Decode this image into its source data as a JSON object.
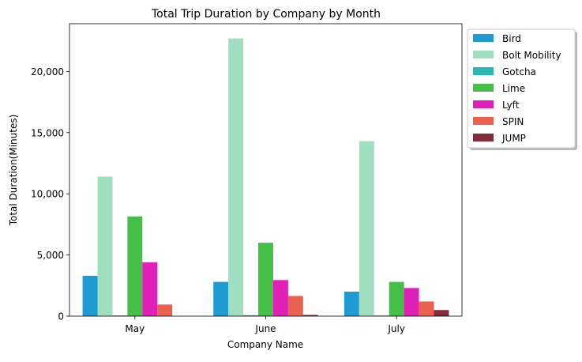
{
  "chart_data": {
    "type": "bar",
    "title": "Total Trip Duration by Company by Month",
    "xlabel": "Company Name",
    "ylabel": "Total Duration(Minutes)",
    "categories": [
      "May",
      "June",
      "July"
    ],
    "ylim": [
      0,
      23900
    ],
    "yticks": [
      0,
      5000,
      10000,
      15000,
      20000
    ],
    "ytick_labels": [
      "0",
      "5,000",
      "10,000",
      "15,000",
      "20,000"
    ],
    "grid": false,
    "legend_position": "outside-top-right",
    "series": [
      {
        "name": "Bird",
        "color": "#1e9bd2",
        "values": [
          3300,
          2800,
          2000
        ]
      },
      {
        "name": "Bolt Mobility",
        "color": "#9fdfbf",
        "values": [
          11400,
          22700,
          14300
        ]
      },
      {
        "name": "Gotcha",
        "color": "#2bb6b6",
        "values": [
          60,
          80,
          50
        ]
      },
      {
        "name": "Lime",
        "color": "#45bf47",
        "values": [
          8150,
          6000,
          2800
        ]
      },
      {
        "name": "Lyft",
        "color": "#e020b6",
        "values": [
          4400,
          2950,
          2300
        ]
      },
      {
        "name": "SPIN",
        "color": "#ec6050",
        "values": [
          950,
          1650,
          1200
        ]
      },
      {
        "name": "JUMP",
        "color": "#842a38",
        "values": [
          0,
          100,
          500
        ]
      }
    ]
  }
}
